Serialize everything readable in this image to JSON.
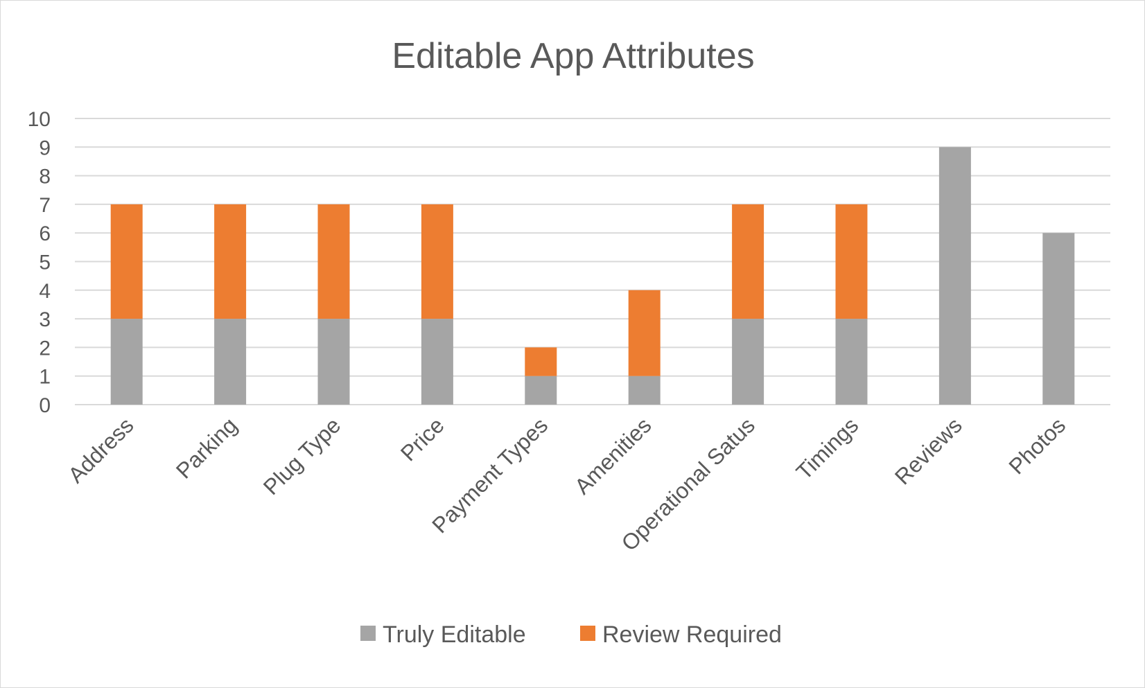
{
  "chart_data": {
    "type": "bar",
    "stacked": true,
    "title": "Editable App Attributes",
    "xlabel": "",
    "ylabel": "",
    "ylim": [
      0,
      10
    ],
    "yticks": [
      "0",
      "1",
      "2",
      "3",
      "4",
      "5",
      "6",
      "7",
      "8",
      "9",
      "10"
    ],
    "grid": true,
    "legend_position": "bottom",
    "categories": [
      "Address",
      "Parking",
      "Plug Type",
      "Price",
      "Payment Types",
      "Amenities",
      "Operational Satus",
      "Timings",
      "Reviews",
      "Photos"
    ],
    "series": [
      {
        "name": "Truly Editable",
        "color": "#a5a5a5",
        "values": [
          3,
          3,
          3,
          3,
          1,
          1,
          3,
          3,
          9,
          6
        ]
      },
      {
        "name": "Review Required",
        "color": "#ed7d31",
        "values": [
          4,
          4,
          4,
          4,
          1,
          3,
          4,
          4,
          0,
          0
        ]
      }
    ]
  }
}
